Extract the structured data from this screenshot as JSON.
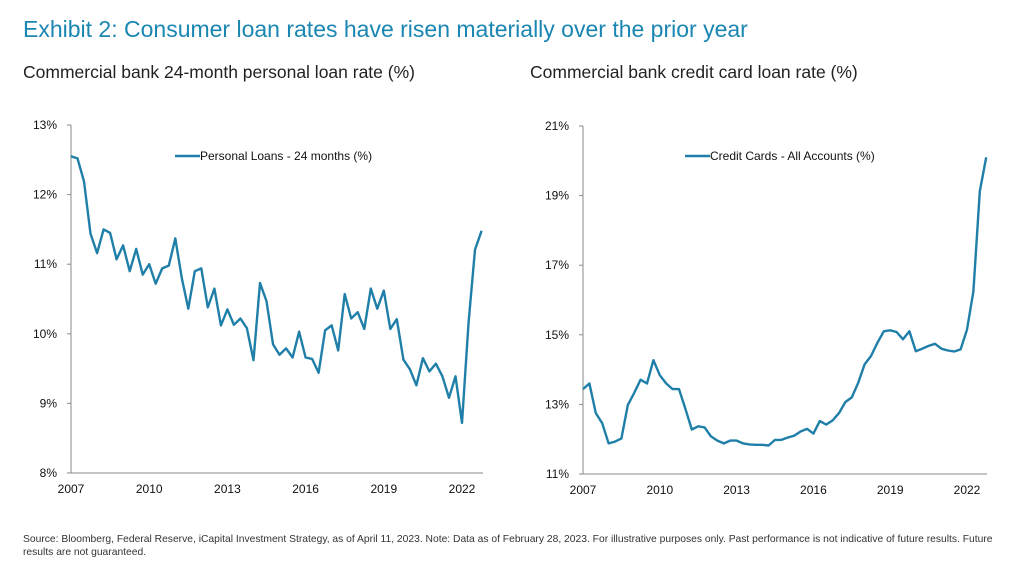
{
  "title": "Exhibit 2: Consumer loan rates have risen materially over the prior year",
  "footnote": "Source: Bloomberg, Federal Reserve, iCapital Investment Strategy, as of April 11, 2023. Note: Data as of February 28, 2023. For illustrative purposes only. Past performance is not indicative of future results. Future results are not guaranteed.",
  "colors": {
    "title": "#1a86b2",
    "line": "#1f7fa8",
    "axis": "#8a8a8a"
  },
  "chart_data": [
    {
      "type": "line",
      "title": "Commercial bank 24-month personal loan rate (%)",
      "legend": "Personal Loans - 24 months (%)",
      "legend_position": "top-center",
      "xlabel": "",
      "ylabel": "",
      "x_start": 2007,
      "x_step": 0.25,
      "xlim": [
        2007,
        2023
      ],
      "xticks": [
        "2007",
        "2010",
        "2013",
        "2016",
        "2019",
        "2022"
      ],
      "ylim": [
        8,
        13
      ],
      "yticks": [
        "8%",
        "9%",
        "10%",
        "11%",
        "12%",
        "13%"
      ],
      "grid": false,
      "values": [
        12.55,
        12.52,
        12.19,
        11.44,
        11.16,
        11.5,
        11.45,
        11.07,
        11.27,
        10.9,
        11.22,
        10.85,
        11.0,
        10.72,
        10.94,
        10.98,
        11.37,
        10.8,
        10.36,
        10.9,
        10.94,
        10.38,
        10.65,
        10.12,
        10.35,
        10.13,
        10.22,
        10.08,
        9.62,
        10.73,
        10.47,
        9.85,
        9.7,
        9.79,
        9.66,
        10.03,
        9.66,
        9.64,
        9.44,
        10.05,
        10.12,
        9.76,
        10.57,
        10.22,
        10.31,
        10.07,
        10.65,
        10.36,
        10.62,
        10.07,
        10.21,
        9.63,
        9.49,
        9.26,
        9.65,
        9.46,
        9.57,
        9.39,
        9.08,
        9.39,
        8.72,
        10.15,
        11.21,
        11.48
      ]
    },
    {
      "type": "line",
      "title": "Commercial bank credit card loan rate (%)",
      "legend": "Credit Cards - All Accounts (%)",
      "legend_position": "top-center",
      "xlabel": "",
      "ylabel": "",
      "x_start": 2007,
      "x_step": 0.25,
      "xlim": [
        2007,
        2023
      ],
      "xticks": [
        "2007",
        "2010",
        "2013",
        "2016",
        "2019",
        "2022"
      ],
      "ylim": [
        11,
        21
      ],
      "yticks": [
        "11%",
        "13%",
        "15%",
        "17%",
        "19%",
        "21%"
      ],
      "grid": false,
      "values": [
        13.44,
        13.6,
        12.75,
        12.46,
        11.88,
        11.93,
        12.02,
        12.98,
        13.33,
        13.71,
        13.6,
        14.27,
        13.84,
        13.6,
        13.44,
        13.44,
        12.87,
        12.28,
        12.37,
        12.34,
        12.08,
        11.96,
        11.88,
        11.96,
        11.96,
        11.88,
        11.85,
        11.84,
        11.84,
        11.82,
        11.98,
        11.98,
        12.05,
        12.1,
        12.22,
        12.3,
        12.16,
        12.52,
        12.42,
        12.54,
        12.75,
        13.07,
        13.2,
        13.62,
        14.15,
        14.39,
        14.77,
        15.1,
        15.13,
        15.08,
        14.87,
        15.1,
        14.53,
        14.6,
        14.68,
        14.74,
        14.6,
        14.55,
        14.52,
        14.58,
        15.15,
        16.25,
        19.12,
        20.1
      ]
    }
  ]
}
